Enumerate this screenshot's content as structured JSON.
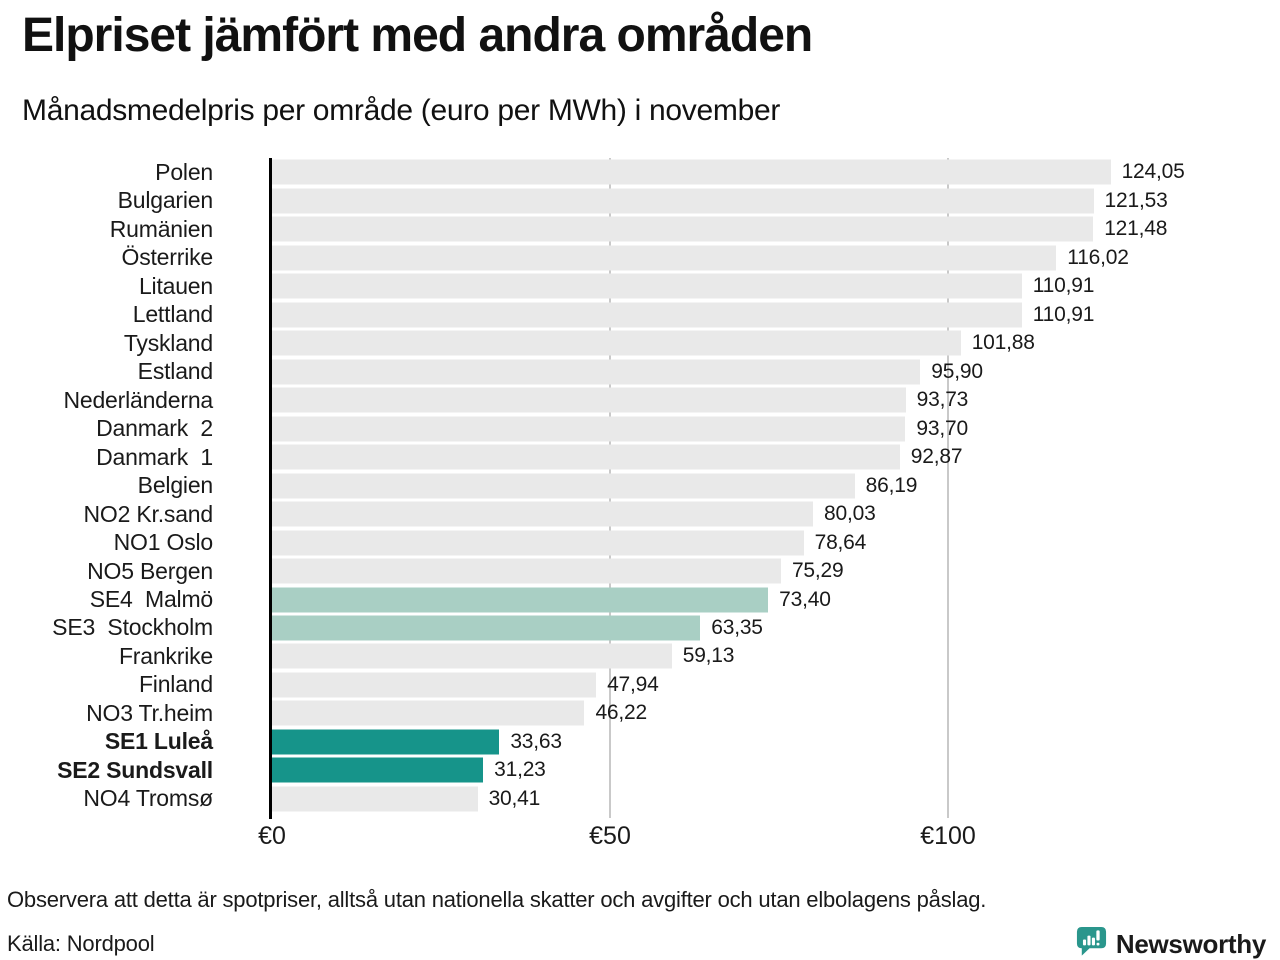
{
  "header": {
    "title": "Elpriset jämfört med andra områden",
    "subtitle": "Månadsmedelpris per område (euro per MWh) i november"
  },
  "chart_data": {
    "type": "bar",
    "orientation": "horizontal",
    "title": "Elpriset jämfört med andra områden",
    "subtitle": "Månadsmedelpris per område (euro per MWh) i november",
    "unit": "euro per MWh",
    "xlim": [
      0,
      149
    ],
    "grid": "vertical gridlines at 50 and 100, drawn behind bars",
    "legend": "none",
    "x_ticks": [
      {
        "label": "€0",
        "value": 0
      },
      {
        "label": "€50",
        "value": 50
      },
      {
        "label": "€100",
        "value": 100
      }
    ],
    "bars": [
      {
        "label": "Polen",
        "value": 124.05,
        "display": "124,05",
        "color": "default",
        "bold": false
      },
      {
        "label": "Bulgarien",
        "value": 121.53,
        "display": "121,53",
        "color": "default",
        "bold": false
      },
      {
        "label": "Rumänien",
        "value": 121.48,
        "display": "121,48",
        "color": "default",
        "bold": false
      },
      {
        "label": "Österrike",
        "value": 116.02,
        "display": "116,02",
        "color": "default",
        "bold": false
      },
      {
        "label": "Litauen",
        "value": 110.91,
        "display": "110,91",
        "color": "default",
        "bold": false
      },
      {
        "label": "Lettland",
        "value": 110.91,
        "display": "110,91",
        "color": "default",
        "bold": false
      },
      {
        "label": "Tyskland",
        "value": 101.88,
        "display": "101,88",
        "color": "default",
        "bold": false
      },
      {
        "label": "Estland",
        "value": 95.9,
        "display": "95,90",
        "color": "default",
        "bold": false
      },
      {
        "label": "Nederländerna",
        "value": 93.73,
        "display": "93,73",
        "color": "default",
        "bold": false
      },
      {
        "label": "Danmark  2",
        "value": 93.7,
        "display": "93,70",
        "color": "default",
        "bold": false
      },
      {
        "label": "Danmark  1",
        "value": 92.87,
        "display": "92,87",
        "color": "default",
        "bold": false
      },
      {
        "label": "Belgien",
        "value": 86.19,
        "display": "86,19",
        "color": "default",
        "bold": false
      },
      {
        "label": "NO2 Kr.sand",
        "value": 80.03,
        "display": "80,03",
        "color": "default",
        "bold": false
      },
      {
        "label": "NO1 Oslo",
        "value": 78.64,
        "display": "78,64",
        "color": "default",
        "bold": false
      },
      {
        "label": "NO5 Bergen",
        "value": 75.29,
        "display": "75,29",
        "color": "default",
        "bold": false
      },
      {
        "label": "SE4  Malmö",
        "value": 73.4,
        "display": "73,40",
        "color": "light",
        "bold": false
      },
      {
        "label": "SE3  Stockholm",
        "value": 63.35,
        "display": "63,35",
        "color": "light",
        "bold": false
      },
      {
        "label": "Frankrike",
        "value": 59.13,
        "display": "59,13",
        "color": "default",
        "bold": false
      },
      {
        "label": "Finland",
        "value": 47.94,
        "display": "47,94",
        "color": "default",
        "bold": false
      },
      {
        "label": "NO3 Tr.heim",
        "value": 46.22,
        "display": "46,22",
        "color": "default",
        "bold": false
      },
      {
        "label": "SE1 Luleå",
        "value": 33.63,
        "display": "33,63",
        "color": "dark",
        "bold": true
      },
      {
        "label": "SE2 Sundsvall",
        "value": 31.23,
        "display": "31,23",
        "color": "dark",
        "bold": true
      },
      {
        "label": "NO4 Tromsø",
        "value": 30.41,
        "display": "30,41",
        "color": "default",
        "bold": false
      }
    ],
    "colors": {
      "default": "#e9e9e9",
      "light": "#a9cfc4",
      "dark": "#16948a",
      "axis": "#000000",
      "gridline": "#c9c9c9",
      "text": "#1a1a1a"
    }
  },
  "footer": {
    "note": "Observera att detta är spotpriser, alltså utan nationella skatter och avgifter och utan elbolagens påslag.",
    "source": "Källa: Nordpool",
    "logo_text": "Newsworthy",
    "logo_color": "#2a968c"
  }
}
